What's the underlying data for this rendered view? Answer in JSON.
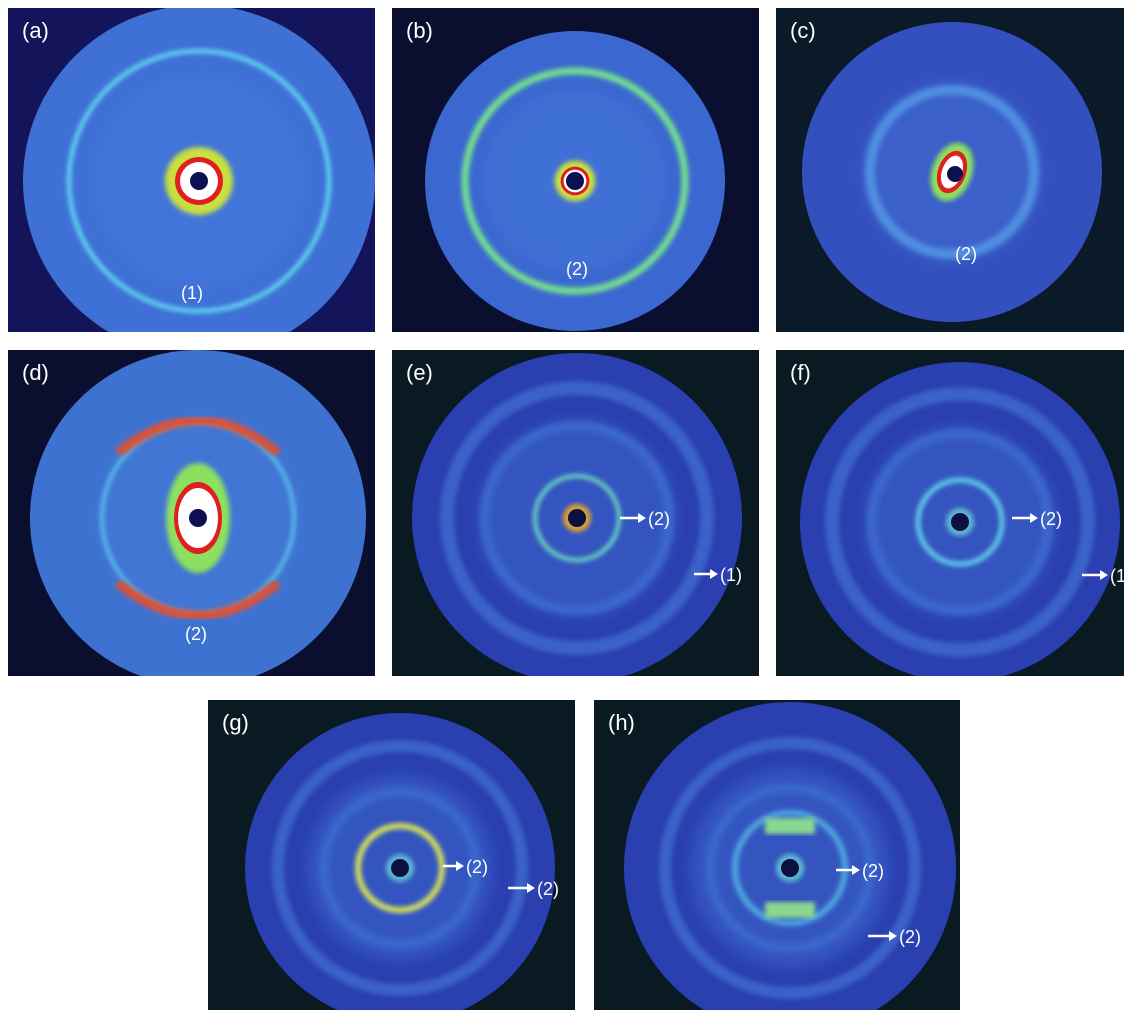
{
  "panels": [
    {
      "label": "(a)",
      "annotations": [
        "(1)"
      ]
    },
    {
      "label": "(b)",
      "annotations": [
        "(2)"
      ]
    },
    {
      "label": "(c)",
      "annotations": [
        "(2)"
      ]
    },
    {
      "label": "(d)",
      "annotations": [
        "(2)"
      ]
    },
    {
      "label": "(e)",
      "annotations": [
        "(2)",
        "(1)"
      ]
    },
    {
      "label": "(f)",
      "annotations": [
        "(2)",
        "(1"
      ]
    },
    {
      "label": "(g)",
      "annotations": [
        "(2)",
        "(2)"
      ]
    },
    {
      "label": "(h)",
      "annotations": [
        "(2)",
        "(2)"
      ]
    }
  ]
}
